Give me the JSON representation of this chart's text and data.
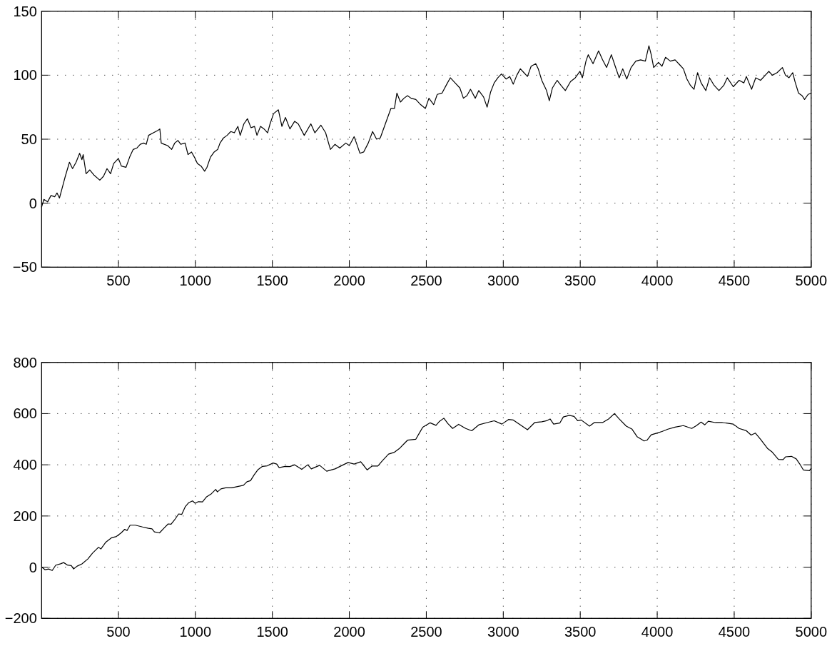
{
  "chart_data": [
    {
      "type": "line",
      "line_style": "solid",
      "grid": true,
      "xlim": [
        1,
        5000
      ],
      "xticks": [
        500,
        1000,
        1500,
        2000,
        2500,
        3000,
        3500,
        4000,
        4500,
        5000
      ],
      "ylim": [
        -50,
        150
      ],
      "yticks": [
        -50,
        0,
        50,
        100,
        150
      ],
      "x": [
        1,
        16,
        40,
        62,
        86,
        101,
        117,
        135,
        155,
        182,
        202,
        225,
        248,
        263,
        271,
        290,
        314,
        341,
        379,
        403,
        426,
        449,
        469,
        500,
        519,
        549,
        573,
        596,
        619,
        642,
        665,
        681,
        696,
        727,
        758,
        769,
        778,
        797,
        820,
        846,
        866,
        887,
        905,
        933,
        952,
        975,
        998,
        1013,
        1037,
        1060,
        1075,
        1098,
        1122,
        1145,
        1160,
        1183,
        1206,
        1230,
        1253,
        1276,
        1291,
        1315,
        1338,
        1361,
        1384,
        1400,
        1423,
        1446,
        1469,
        1485,
        1508,
        1539,
        1562,
        1585,
        1614,
        1645,
        1668,
        1707,
        1750,
        1776,
        1815,
        1846,
        1877,
        1907,
        1938,
        1977,
        2000,
        2031,
        2046,
        2069,
        2093,
        2123,
        2151,
        2177,
        2201,
        2231,
        2270,
        2293,
        2309,
        2332,
        2355,
        2378,
        2401,
        2432,
        2463,
        2494,
        2517,
        2548,
        2571,
        2602,
        2633,
        2656,
        2687,
        2718,
        2741,
        2764,
        2787,
        2818,
        2841,
        2872,
        2895,
        2918,
        2941,
        2965,
        2988,
        3019,
        3042,
        3065,
        3088,
        3111,
        3134,
        3157,
        3181,
        3211,
        3227,
        3250,
        3281,
        3299,
        3319,
        3350,
        3375,
        3403,
        3437,
        3468,
        3498,
        3514,
        3537,
        3552,
        3583,
        3619,
        3645,
        3671,
        3702,
        3727,
        3753,
        3776,
        3802,
        3830,
        3861,
        3892,
        3923,
        3946,
        3961,
        3977,
        4008,
        4031,
        4054,
        4085,
        4116,
        4147,
        4170,
        4193,
        4216,
        4239,
        4262,
        4285,
        4316,
        4340,
        4370,
        4401,
        4432,
        4455,
        4494,
        4532,
        4563,
        4579,
        4613,
        4640,
        4671,
        4702,
        4725,
        4748,
        4779,
        4813,
        4833,
        4856,
        4880,
        4895,
        4918,
        4941,
        4957,
        4980,
        5000
      ],
      "series": [
        {
          "color": "#000000",
          "values": [
            -3,
            3,
            1,
            6,
            5,
            8,
            4,
            12,
            21,
            32,
            27,
            32,
            39,
            34,
            38,
            23,
            26,
            22,
            18,
            21,
            27,
            23,
            31,
            35,
            29,
            28,
            36,
            42,
            43,
            46,
            47,
            46,
            53,
            55,
            57,
            58,
            47,
            46,
            45,
            42,
            47,
            49,
            46,
            47,
            38,
            40,
            35,
            31,
            29,
            25,
            28,
            36,
            40,
            42,
            47,
            51,
            53,
            56,
            55,
            60,
            53,
            62,
            66,
            59,
            60,
            53,
            60,
            58,
            55,
            62,
            70,
            73,
            60,
            67,
            58,
            64,
            62,
            53,
            62,
            55,
            61,
            55,
            42,
            46,
            43,
            47,
            45,
            52,
            47,
            39,
            40,
            47,
            56,
            50,
            51,
            61,
            74,
            74,
            86,
            79,
            82,
            84,
            82,
            81,
            77,
            74,
            82,
            77,
            85,
            86,
            93,
            98,
            94,
            90,
            82,
            84,
            89,
            82,
            88,
            83,
            75,
            87,
            94,
            98,
            101,
            97,
            99,
            93,
            100,
            105,
            102,
            99,
            107,
            109,
            105,
            96,
            88,
            80,
            90,
            96,
            92,
            88,
            95,
            98,
            103,
            98,
            111,
            116,
            109,
            119,
            112,
            106,
            116,
            107,
            98,
            105,
            97,
            106,
            111,
            112,
            111,
            123,
            116,
            106,
            110,
            107,
            114,
            111,
            112,
            108,
            105,
            97,
            92,
            89,
            102,
            94,
            88,
            98,
            92,
            88,
            92,
            98,
            91,
            96,
            94,
            99,
            89,
            98,
            96,
            100,
            103,
            100,
            102,
            106,
            100,
            98,
            102,
            95,
            86,
            84,
            81,
            85,
            86
          ]
        }
      ]
    },
    {
      "type": "line",
      "line_style": "solid",
      "grid": true,
      "xlim": [
        1,
        5000
      ],
      "xticks": [
        500,
        1000,
        1500,
        2000,
        2500,
        3000,
        3500,
        4000,
        4500,
        5000
      ],
      "ylim": [
        -200,
        800
      ],
      "yticks": [
        -200,
        0,
        200,
        400,
        600,
        800
      ],
      "x": [
        5,
        24,
        47,
        70,
        93,
        124,
        144,
        170,
        194,
        209,
        232,
        263,
        301,
        332,
        371,
        386,
        417,
        456,
        487,
        518,
        541,
        556,
        576,
        610,
        657,
        695,
        718,
        734,
        767,
        795,
        823,
        842,
        865,
        891,
        911,
        934,
        957,
        981,
        999,
        1019,
        1046,
        1073,
        1104,
        1132,
        1143,
        1166,
        1197,
        1235,
        1274,
        1312,
        1335,
        1358,
        1382,
        1405,
        1436,
        1467,
        1505,
        1528,
        1544,
        1583,
        1614,
        1645,
        1691,
        1730,
        1753,
        1807,
        1853,
        1907,
        1954,
        1992,
        2031,
        2074,
        2116,
        2147,
        2185,
        2216,
        2255,
        2293,
        2324,
        2355,
        2378,
        2432,
        2455,
        2477,
        2525,
        2563,
        2586,
        2614,
        2640,
        2671,
        2710,
        2756,
        2795,
        2841,
        2895,
        2941,
        2991,
        3034,
        3065,
        3157,
        3204,
        3250,
        3281,
        3304,
        3327,
        3367,
        3390,
        3429,
        3460,
        3483,
        3506,
        3560,
        3591,
        3645,
        3684,
        3722,
        3753,
        3799,
        3835,
        3869,
        3915,
        3934,
        3961,
        4000,
        4031,
        4069,
        4116,
        4170,
        4224,
        4255,
        4285,
        4309,
        4332,
        4378,
        4424,
        4494,
        4532,
        4579,
        4610,
        4637,
        4671,
        4718,
        4748,
        4787,
        4818,
        4833,
        4872,
        4903,
        4926,
        4949,
        4988,
        5000
      ],
      "series": [
        {
          "color": "#000000",
          "values": [
            -1,
            -10,
            -7,
            -13,
            8,
            13,
            18,
            8,
            6,
            -7,
            4,
            13,
            32,
            55,
            78,
            71,
            97,
            115,
            120,
            134,
            148,
            143,
            164,
            164,
            157,
            152,
            150,
            138,
            134,
            152,
            169,
            168,
            185,
            208,
            206,
            236,
            252,
            259,
            250,
            256,
            255,
            275,
            287,
            304,
            294,
            306,
            310,
            310,
            315,
            320,
            334,
            338,
            361,
            380,
            394,
            396,
            407,
            403,
            389,
            394,
            393,
            400,
            382,
            400,
            384,
            398,
            375,
            384,
            398,
            409,
            403,
            412,
            380,
            395,
            395,
            417,
            442,
            449,
            463,
            482,
            496,
            500,
            524,
            547,
            564,
            554,
            570,
            582,
            561,
            542,
            558,
            542,
            533,
            556,
            565,
            572,
            559,
            577,
            575,
            537,
            565,
            568,
            572,
            579,
            559,
            563,
            587,
            593,
            589,
            572,
            575,
            551,
            565,
            565,
            579,
            600,
            579,
            551,
            540,
            510,
            493,
            496,
            517,
            524,
            530,
            539,
            547,
            553,
            542,
            553,
            567,
            556,
            570,
            565,
            565,
            559,
            542,
            533,
            516,
            524,
            500,
            463,
            449,
            421,
            420,
            431,
            433,
            423,
            403,
            380,
            377,
            386
          ]
        }
      ]
    }
  ]
}
